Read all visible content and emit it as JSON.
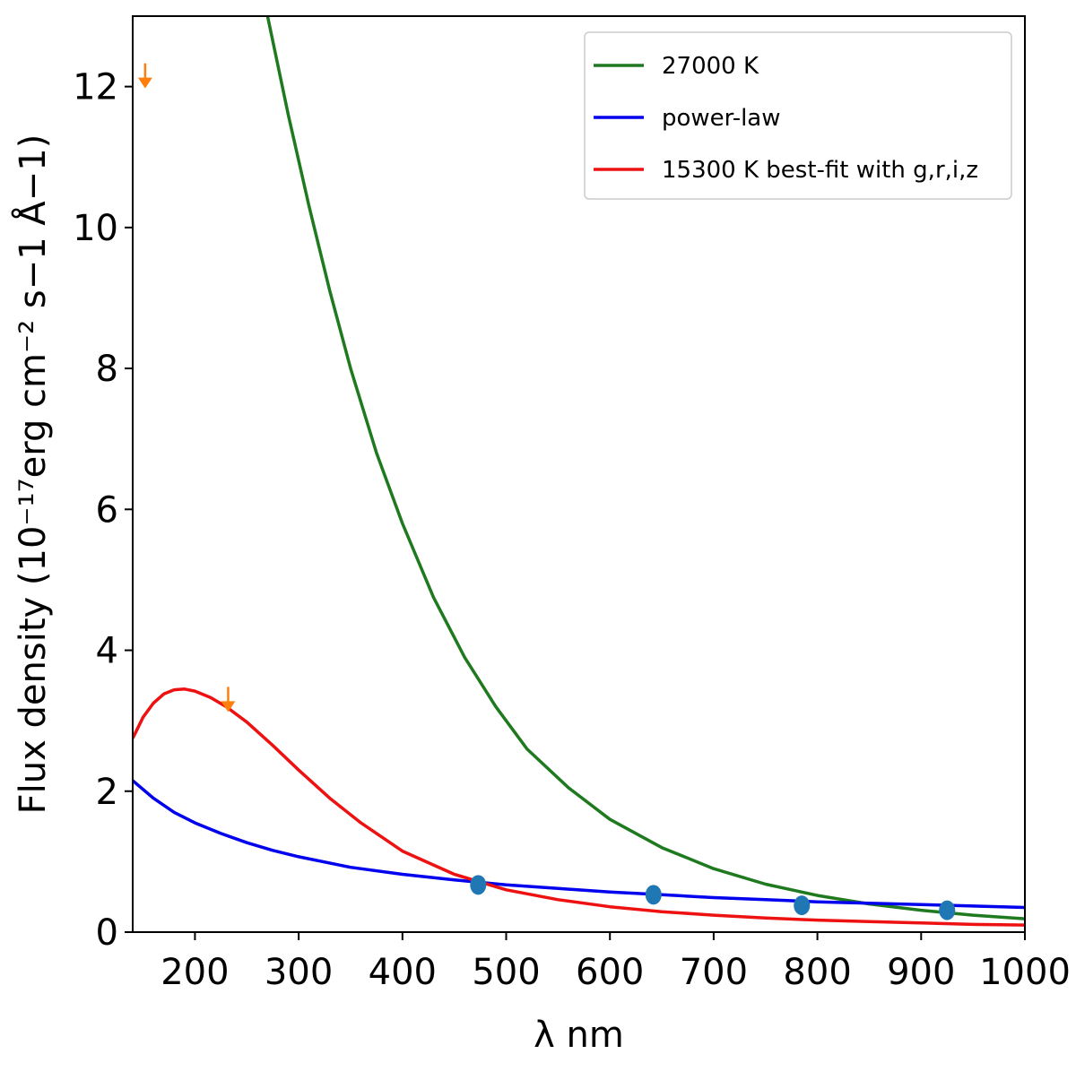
{
  "chart_data": {
    "type": "line",
    "xlabel": "λ nm",
    "ylabel": "Flux density (10⁻¹⁷erg cm⁻² s−1 Å−1)",
    "xlim": [
      140,
      1000
    ],
    "ylim": [
      0,
      13
    ],
    "xticks": [
      200,
      300,
      400,
      500,
      600,
      700,
      800,
      900,
      1000
    ],
    "yticks": [
      0,
      2,
      4,
      6,
      8,
      10,
      12
    ],
    "grid": false,
    "legend_position": "top-right",
    "series": [
      {
        "name": "27000 K",
        "color": "#1f7a1f",
        "x": [
          270,
          290,
          310,
          330,
          350,
          375,
          400,
          430,
          460,
          490,
          520,
          560,
          600,
          650,
          700,
          750,
          800,
          850,
          900,
          950,
          1000
        ],
        "y": [
          13.0,
          11.6,
          10.3,
          9.1,
          8.0,
          6.8,
          5.8,
          4.75,
          3.9,
          3.2,
          2.6,
          2.05,
          1.6,
          1.2,
          0.9,
          0.68,
          0.52,
          0.4,
          0.31,
          0.24,
          0.19
        ]
      },
      {
        "name": "power-law",
        "color": "#0000ee",
        "x": [
          140,
          160,
          180,
          200,
          225,
          250,
          275,
          300,
          350,
          400,
          450,
          500,
          550,
          600,
          650,
          700,
          750,
          800,
          850,
          900,
          950,
          1000
        ],
        "y": [
          2.15,
          1.9,
          1.7,
          1.55,
          1.4,
          1.27,
          1.16,
          1.07,
          0.92,
          0.82,
          0.74,
          0.67,
          0.62,
          0.57,
          0.53,
          0.49,
          0.46,
          0.43,
          0.41,
          0.39,
          0.37,
          0.35
        ]
      },
      {
        "name": "15300 K best-fit with g,r,i,z",
        "color": "#ee1111",
        "x": [
          140,
          150,
          160,
          170,
          180,
          190,
          200,
          215,
          230,
          250,
          275,
          300,
          330,
          360,
          400,
          450,
          500,
          550,
          600,
          650,
          700,
          750,
          800,
          850,
          900,
          950,
          1000
        ],
        "y": [
          2.75,
          3.05,
          3.25,
          3.38,
          3.44,
          3.45,
          3.42,
          3.33,
          3.2,
          2.98,
          2.65,
          2.3,
          1.9,
          1.55,
          1.15,
          0.82,
          0.6,
          0.46,
          0.36,
          0.29,
          0.24,
          0.2,
          0.17,
          0.15,
          0.13,
          0.11,
          0.1
        ]
      }
    ],
    "points": {
      "color": "#1f77b4",
      "x": [
        473,
        642,
        785,
        925
      ],
      "y": [
        0.67,
        0.53,
        0.38,
        0.31
      ]
    },
    "upper_limits": {
      "color": "#ff7f0e",
      "x": [
        152,
        232
      ],
      "y": [
        12.0,
        3.15
      ]
    }
  }
}
